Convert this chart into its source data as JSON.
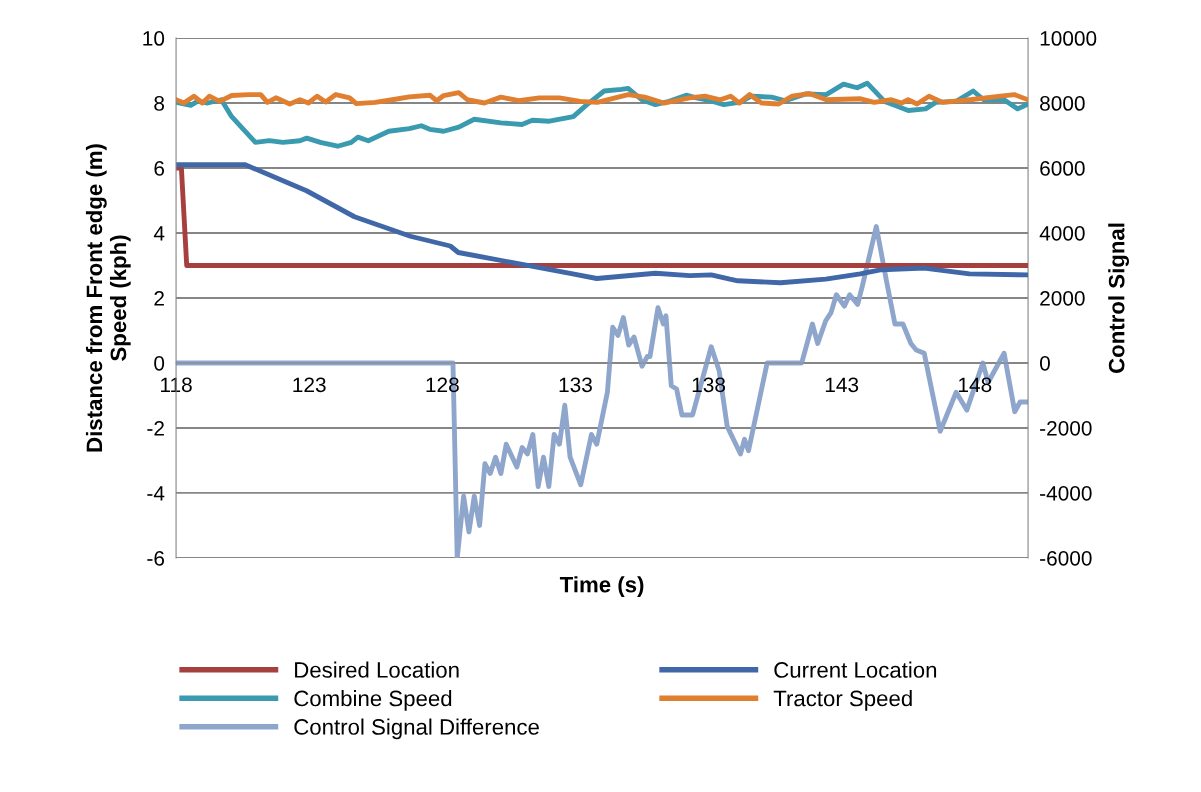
{
  "chart_data": {
    "type": "line",
    "xlabel": "Time (s)",
    "ylabel": "Distance from Front edge (m)\nSpeed (kph)",
    "y2label": "Control Signal",
    "xlim": [
      118,
      150
    ],
    "xticks": [
      118,
      123,
      128,
      133,
      138,
      143,
      148
    ],
    "ylim": [
      -6,
      10
    ],
    "yticks": [
      -6,
      -4,
      -2,
      0,
      2,
      4,
      6,
      8,
      10
    ],
    "y2lim": [
      -6000,
      10000
    ],
    "y2ticks": [
      -6000,
      -4000,
      -2000,
      0,
      2000,
      4000,
      6000,
      8000,
      10000
    ],
    "grid": true,
    "legend": "bottom",
    "marker": "none",
    "line_style": "solid",
    "series": [
      {
        "name": "Desired Location",
        "color": "#a5403f",
        "x": [
          118,
          118.2,
          118.4,
          150
        ],
        "values": [
          6,
          6,
          3,
          3
        ]
      },
      {
        "name": "Current Location",
        "color": "#4068a8",
        "x": [
          118,
          120.6,
          122.9,
          124.7,
          126.8,
          128.3,
          128.6,
          130.9,
          132.9,
          133.8,
          136.0,
          137.3,
          138.1,
          138.8,
          139.1,
          140.7,
          142.4,
          143.7,
          144.5,
          146.1,
          147.8,
          150
        ],
        "values": [
          6.1,
          6.1,
          5.3,
          4.5,
          3.9,
          3.6,
          3.4,
          3.05,
          2.74,
          2.6,
          2.76,
          2.69,
          2.71,
          2.58,
          2.53,
          2.47,
          2.58,
          2.74,
          2.87,
          2.92,
          2.74,
          2.71
        ]
      },
      {
        "name": "Combine Speed",
        "color": "#3a9ab0",
        "x": [
          118,
          118.55,
          118.8,
          119.19,
          119.7,
          120.09,
          120.98,
          121.5,
          122.01,
          122.65,
          122.91,
          123.42,
          124.07,
          124.58,
          124.83,
          125.22,
          125.99,
          126.76,
          127.21,
          127.53,
          128.05,
          128.62,
          129.2,
          130.2,
          130.99,
          131.38,
          132.02,
          132.92,
          133.43,
          134.08,
          134.72,
          134.98,
          135.49,
          136.0,
          136.52,
          137.16,
          137.54,
          138.06,
          138.57,
          139.2,
          139.6,
          140.37,
          140.88,
          141.65,
          142.42,
          143.07,
          143.58,
          143.96,
          144.61,
          144.99,
          145.5,
          146.15,
          146.53,
          147.3,
          147.94,
          148.33,
          149.1,
          149.61,
          150
        ],
        "values": [
          8.02,
          7.93,
          8.05,
          8.0,
          8.1,
          7.58,
          6.79,
          6.84,
          6.79,
          6.84,
          6.92,
          6.79,
          6.67,
          6.79,
          6.95,
          6.84,
          7.13,
          7.21,
          7.3,
          7.19,
          7.13,
          7.26,
          7.5,
          7.39,
          7.34,
          7.47,
          7.44,
          7.58,
          7.95,
          8.37,
          8.42,
          8.45,
          8.1,
          7.95,
          8.05,
          8.24,
          8.16,
          8.07,
          7.95,
          8.03,
          8.21,
          8.18,
          8.07,
          8.28,
          8.26,
          8.58,
          8.47,
          8.61,
          8.05,
          7.93,
          7.77,
          7.82,
          8.02,
          8.05,
          8.37,
          8.1,
          8.1,
          7.82,
          7.97
        ]
      },
      {
        "name": "Tractor Speed",
        "color": "#e07f30",
        "x": [
          118,
          118.29,
          118.67,
          118.99,
          119.25,
          119.64,
          120.09,
          120.73,
          121.18,
          121.43,
          121.75,
          122.27,
          122.65,
          122.97,
          123.3,
          123.62,
          124.0,
          124.52,
          124.77,
          125.48,
          126.12,
          126.76,
          127.53,
          127.79,
          128.05,
          128.62,
          128.94,
          129.58,
          130.2,
          130.87,
          131.64,
          132.4,
          133.18,
          133.82,
          134.98,
          135.6,
          136.32,
          137.29,
          137.86,
          138.44,
          138.83,
          139.15,
          139.54,
          139.99,
          140.63,
          141.14,
          141.78,
          142.42,
          143.71,
          144.22,
          144.86,
          145.25,
          145.5,
          145.83,
          146.28,
          146.79,
          147.82,
          148.97,
          149.48,
          150
        ],
        "values": [
          8.1,
          8.0,
          8.21,
          8.0,
          8.21,
          8.05,
          8.23,
          8.26,
          8.26,
          8.02,
          8.16,
          7.97,
          8.1,
          8.0,
          8.21,
          8.03,
          8.26,
          8.16,
          7.98,
          8.02,
          8.1,
          8.19,
          8.24,
          8.07,
          8.23,
          8.32,
          8.1,
          8.0,
          8.18,
          8.07,
          8.16,
          8.16,
          8.05,
          8.02,
          8.26,
          8.18,
          8.0,
          8.16,
          8.21,
          8.1,
          8.21,
          8.0,
          8.26,
          8.0,
          7.97,
          8.21,
          8.29,
          8.1,
          8.13,
          8.02,
          8.1,
          8.0,
          8.1,
          7.97,
          8.21,
          8.02,
          8.1,
          8.21,
          8.26,
          8.1
        ]
      },
      {
        "name": "Control Signal Difference",
        "color": "#8ea5cc",
        "axis": "y2",
        "x": [
          118,
          128.2,
          128.4,
          128.56,
          128.8,
          129.0,
          129.2,
          129.4,
          129.6,
          129.8,
          130.0,
          130.2,
          130.4,
          130.8,
          131.0,
          131.2,
          131.4,
          131.6,
          131.8,
          132.0,
          132.2,
          132.4,
          132.6,
          132.8,
          133.2,
          133.6,
          133.8,
          134.2,
          134.4,
          134.6,
          134.8,
          135.0,
          135.2,
          135.5,
          135.7,
          135.8,
          136.1,
          136.3,
          136.4,
          136.6,
          136.8,
          137.0,
          137.4,
          138.1,
          138.4,
          138.7,
          139.2,
          139.35,
          139.5,
          140.2,
          141.5,
          141.9,
          142.1,
          142.4,
          142.6,
          142.8,
          143.1,
          143.3,
          143.6,
          143.8,
          144.3,
          144.7,
          145.0,
          145.3,
          145.6,
          145.8,
          146.1,
          146.7,
          147.3,
          147.7,
          148.3,
          148.5,
          149.1,
          149.5,
          149.7,
          150
        ],
        "values": [
          0,
          0,
          0,
          -6000,
          -4100,
          -5200,
          -4100,
          -5000,
          -3100,
          -3400,
          -2900,
          -3400,
          -2500,
          -3200,
          -2600,
          -2800,
          -2200,
          -3800,
          -2900,
          -3800,
          -2200,
          -2500,
          -1300,
          -2900,
          -3750,
          -2200,
          -2500,
          -900,
          1100,
          850,
          1400,
          550,
          800,
          -100,
          200,
          200,
          1700,
          1200,
          1450,
          -700,
          -800,
          -1600,
          -1600,
          500,
          -250,
          -1950,
          -2800,
          -2350,
          -2700,
          0,
          0,
          1200,
          600,
          1300,
          1550,
          2100,
          1750,
          2100,
          1800,
          2450,
          4200,
          2450,
          1200,
          1200,
          600,
          400,
          300,
          -2100,
          -900,
          -1450,
          0,
          -600,
          300,
          -1500,
          -1200,
          -1200
        ]
      }
    ]
  }
}
